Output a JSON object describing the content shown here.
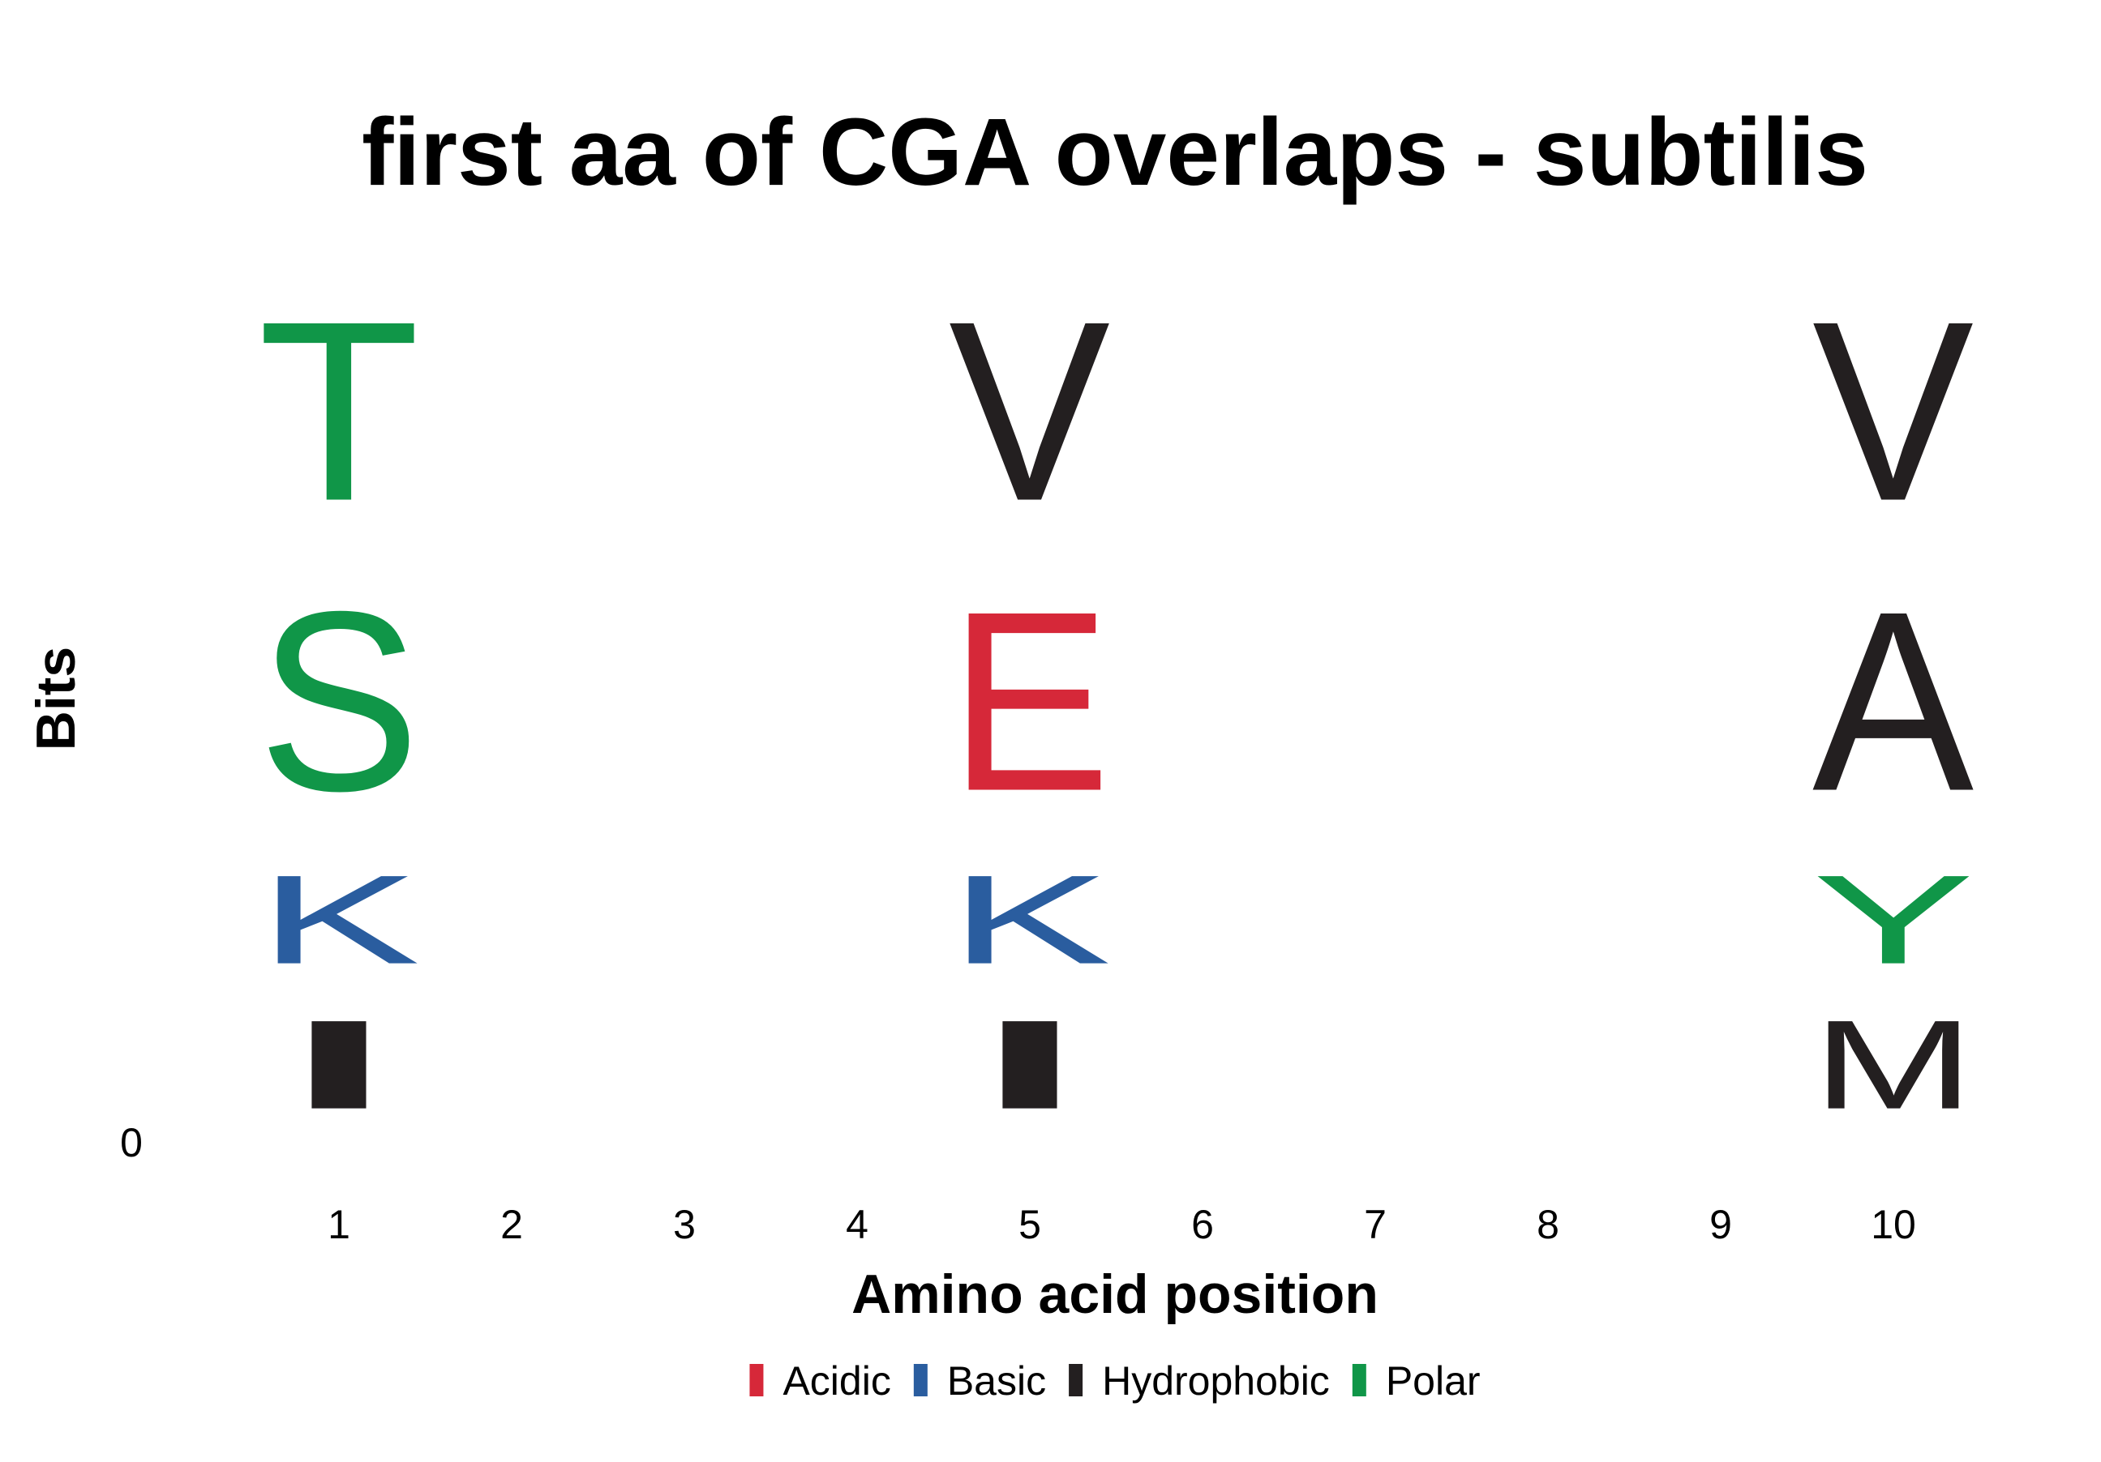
{
  "chart_data": {
    "type": "sequence-logo",
    "title": "first aa of CGA overlaps - subtilis",
    "xlabel": "Amino acid position",
    "ylabel": "Bits",
    "y_ticks": [
      "0"
    ],
    "positions": [
      "1",
      "2",
      "3",
      "4",
      "5",
      "6",
      "7",
      "8",
      "9",
      "10"
    ],
    "stacks": [
      {
        "position": "1",
        "letters": [
          {
            "letter": "I",
            "group": "Hydrophobic",
            "height": 1
          },
          {
            "letter": "K",
            "group": "Basic",
            "height": 1
          },
          {
            "letter": "S",
            "group": "Polar",
            "height": 2
          },
          {
            "letter": "T",
            "group": "Polar",
            "height": 2
          }
        ]
      },
      {
        "position": "2",
        "letters": []
      },
      {
        "position": "3",
        "letters": []
      },
      {
        "position": "4",
        "letters": []
      },
      {
        "position": "5",
        "letters": [
          {
            "letter": "I",
            "group": "Hydrophobic",
            "height": 1
          },
          {
            "letter": "K",
            "group": "Basic",
            "height": 1
          },
          {
            "letter": "E",
            "group": "Acidic",
            "height": 2
          },
          {
            "letter": "V",
            "group": "Hydrophobic",
            "height": 2
          }
        ]
      },
      {
        "position": "6",
        "letters": []
      },
      {
        "position": "7",
        "letters": []
      },
      {
        "position": "8",
        "letters": []
      },
      {
        "position": "9",
        "letters": []
      },
      {
        "position": "10",
        "letters": [
          {
            "letter": "M",
            "group": "Hydrophobic",
            "height": 1
          },
          {
            "letter": "Y",
            "group": "Polar",
            "height": 1
          },
          {
            "letter": "A",
            "group": "Hydrophobic",
            "height": 2
          },
          {
            "letter": "V",
            "group": "Hydrophobic",
            "height": 2
          }
        ]
      }
    ],
    "legend": [
      {
        "name": "Acidic",
        "color": "#d62839"
      },
      {
        "name": "Basic",
        "color": "#2a5d9f"
      },
      {
        "name": "Hydrophobic",
        "color": "#231f20"
      },
      {
        "name": "Polar",
        "color": "#109648"
      }
    ],
    "legend_position": "bottom-center",
    "grid": false
  }
}
